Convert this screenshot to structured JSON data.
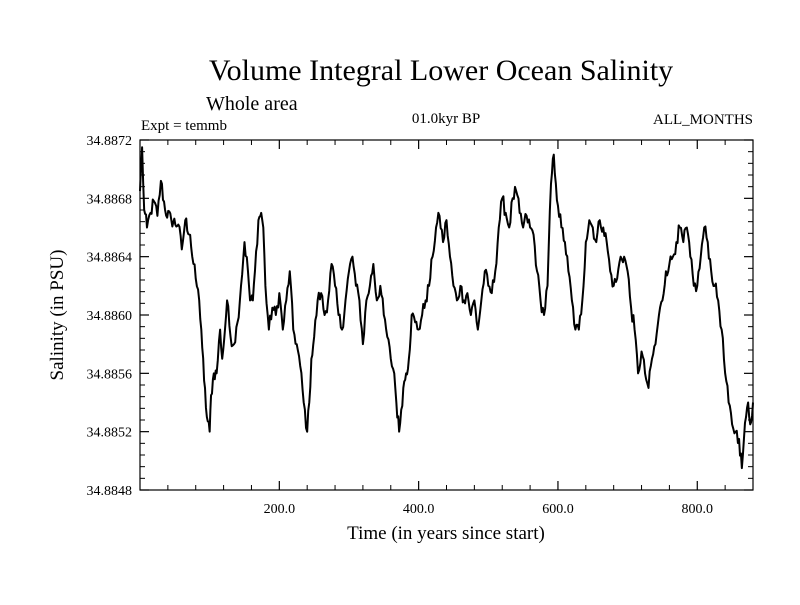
{
  "chart_data": {
    "type": "line",
    "title": "Volume Integral Lower Ocean Salinity",
    "subtitle": "Whole area",
    "left_string": "Expt = temmb",
    "center_string": "01.0kyr BP",
    "right_string": "ALL_MONTHS",
    "xlabel": "Time (in years since start)",
    "ylabel": "Salinity (in PSU)",
    "xlim": [
      0,
      880
    ],
    "ylim": [
      34.8848,
      34.8872
    ],
    "xticks": [
      200,
      400,
      600,
      800
    ],
    "xtick_labels": [
      "200.0",
      "400.0",
      "600.0",
      "800.0"
    ],
    "yticks": [
      34.8848,
      34.8852,
      34.8856,
      34.886,
      34.8864,
      34.8868,
      34.8872
    ],
    "ytick_labels": [
      "34.8848",
      "34.8852",
      "34.8856",
      "34.8860",
      "34.8864",
      "34.8868",
      "34.8872"
    ],
    "series": [
      {
        "name": "salinity",
        "color": "#000000",
        "keypoints": [
          [
            0,
            34.88685
          ],
          [
            3,
            34.88715
          ],
          [
            6,
            34.88672
          ],
          [
            10,
            34.8866
          ],
          [
            15,
            34.8867
          ],
          [
            20,
            34.88678
          ],
          [
            25,
            34.88668
          ],
          [
            30,
            34.88692
          ],
          [
            36,
            34.88672
          ],
          [
            45,
            34.88665
          ],
          [
            55,
            34.88662
          ],
          [
            60,
            34.88645
          ],
          [
            65,
            34.88665
          ],
          [
            72,
            34.88655
          ],
          [
            75,
            34.8864
          ],
          [
            80,
            34.88625
          ],
          [
            85,
            34.8861
          ],
          [
            88,
            34.8859
          ],
          [
            92,
            34.88555
          ],
          [
            96,
            34.8853
          ],
          [
            100,
            34.8852
          ],
          [
            102,
            34.88545
          ],
          [
            106,
            34.8856
          ],
          [
            110,
            34.8856
          ],
          [
            115,
            34.8859
          ],
          [
            118,
            34.8857
          ],
          [
            122,
            34.8859
          ],
          [
            125,
            34.8861
          ],
          [
            130,
            34.88585
          ],
          [
            135,
            34.8858
          ],
          [
            140,
            34.88595
          ],
          [
            145,
            34.8862
          ],
          [
            150,
            34.8865
          ],
          [
            155,
            34.8863
          ],
          [
            158,
            34.8861
          ],
          [
            162,
            34.8861
          ],
          [
            165,
            34.8863
          ],
          [
            170,
            34.88665
          ],
          [
            174,
            34.8867
          ],
          [
            177,
            34.8866
          ],
          [
            180,
            34.8862
          ],
          [
            185,
            34.8859
          ],
          [
            190,
            34.88605
          ],
          [
            195,
            34.886
          ],
          [
            200,
            34.88615
          ],
          [
            205,
            34.8859
          ],
          [
            210,
            34.8861
          ],
          [
            215,
            34.8863
          ],
          [
            220,
            34.8859
          ],
          [
            225,
            34.8858
          ],
          [
            230,
            34.88565
          ],
          [
            235,
            34.8854
          ],
          [
            240,
            34.8852
          ],
          [
            243,
            34.8854
          ],
          [
            246,
            34.8857
          ],
          [
            250,
            34.88585
          ],
          [
            255,
            34.8861
          ],
          [
            260,
            34.88615
          ],
          [
            265,
            34.886
          ],
          [
            270,
            34.8861
          ],
          [
            275,
            34.88635
          ],
          [
            280,
            34.8862
          ],
          [
            285,
            34.886
          ],
          [
            290,
            34.8859
          ],
          [
            295,
            34.8861
          ],
          [
            300,
            34.8863
          ],
          [
            305,
            34.8864
          ],
          [
            310,
            34.8862
          ],
          [
            315,
            34.8861
          ],
          [
            320,
            34.8858
          ],
          [
            325,
            34.8861
          ],
          [
            330,
            34.8862
          ],
          [
            335,
            34.88635
          ],
          [
            340,
            34.8861
          ],
          [
            345,
            34.8862
          ],
          [
            350,
            34.886
          ],
          [
            355,
            34.88585
          ],
          [
            360,
            34.8857
          ],
          [
            365,
            34.8856
          ],
          [
            368,
            34.8854
          ],
          [
            372,
            34.8852
          ],
          [
            375,
            34.88535
          ],
          [
            378,
            34.8855
          ],
          [
            382,
            34.8856
          ],
          [
            386,
            34.8857
          ],
          [
            390,
            34.886
          ],
          [
            395,
            34.88595
          ],
          [
            400,
            34.8859
          ],
          [
            405,
            34.886
          ],
          [
            410,
            34.8861
          ],
          [
            415,
            34.8862
          ],
          [
            420,
            34.8864
          ],
          [
            425,
            34.8866
          ],
          [
            430,
            34.88668
          ],
          [
            435,
            34.8865
          ],
          [
            440,
            34.88665
          ],
          [
            445,
            34.8864
          ],
          [
            450,
            34.8862
          ],
          [
            455,
            34.8861
          ],
          [
            460,
            34.8862
          ],
          [
            465,
            34.8861
          ],
          [
            470,
            34.88615
          ],
          [
            475,
            34.886
          ],
          [
            480,
            34.8861
          ],
          [
            485,
            34.8859
          ],
          [
            490,
            34.8861
          ],
          [
            495,
            34.8863
          ],
          [
            500,
            34.8862
          ],
          [
            505,
            34.88615
          ],
          [
            510,
            34.8863
          ],
          [
            515,
            34.8866
          ],
          [
            520,
            34.8868
          ],
          [
            525,
            34.8867
          ],
          [
            530,
            34.8866
          ],
          [
            535,
            34.8868
          ],
          [
            540,
            34.88685
          ],
          [
            545,
            34.8867
          ],
          [
            550,
            34.8866
          ],
          [
            555,
            34.88668
          ],
          [
            560,
            34.8866
          ],
          [
            565,
            34.88655
          ],
          [
            570,
            34.8863
          ],
          [
            575,
            34.8861
          ],
          [
            580,
            34.886
          ],
          [
            585,
            34.8862
          ],
          [
            590,
            34.8869
          ],
          [
            594,
            34.8871
          ],
          [
            597,
            34.8869
          ],
          [
            600,
            34.88675
          ],
          [
            605,
            34.8866
          ],
          [
            610,
            34.8865
          ],
          [
            615,
            34.8863
          ],
          [
            620,
            34.8861
          ],
          [
            625,
            34.8859
          ],
          [
            630,
            34.8859
          ],
          [
            635,
            34.8861
          ],
          [
            640,
            34.8865
          ],
          [
            645,
            34.88665
          ],
          [
            650,
            34.8866
          ],
          [
            655,
            34.8865
          ],
          [
            660,
            34.88665
          ],
          [
            665,
            34.8866
          ],
          [
            670,
            34.8865
          ],
          [
            675,
            34.8863
          ],
          [
            680,
            34.8862
          ],
          [
            685,
            34.88625
          ],
          [
            690,
            34.8864
          ],
          [
            695,
            34.8864
          ],
          [
            700,
            34.8863
          ],
          [
            705,
            34.88605
          ],
          [
            710,
            34.8859
          ],
          [
            715,
            34.8856
          ],
          [
            720,
            34.88575
          ],
          [
            725,
            34.8856
          ],
          [
            730,
            34.8855
          ],
          [
            735,
            34.8857
          ],
          [
            740,
            34.8858
          ],
          [
            745,
            34.886
          ],
          [
            750,
            34.8861
          ],
          [
            755,
            34.8863
          ],
          [
            760,
            34.88635
          ],
          [
            765,
            34.8864
          ],
          [
            770,
            34.8865
          ],
          [
            775,
            34.8866
          ],
          [
            780,
            34.8865
          ],
          [
            785,
            34.8866
          ],
          [
            790,
            34.8864
          ],
          [
            795,
            34.8862
          ],
          [
            800,
            34.8862
          ],
          [
            805,
            34.8864
          ],
          [
            810,
            34.8866
          ],
          [
            815,
            34.8865
          ],
          [
            820,
            34.8863
          ],
          [
            825,
            34.8862
          ],
          [
            830,
            34.8861
          ],
          [
            835,
            34.8859
          ],
          [
            840,
            34.8856
          ],
          [
            845,
            34.8854
          ],
          [
            850,
            34.88525
          ],
          [
            855,
            34.8852
          ],
          [
            860,
            34.88515
          ],
          [
            864,
            34.88495
          ],
          [
            867,
            34.88515
          ],
          [
            870,
            34.8853
          ],
          [
            873,
            34.8854
          ],
          [
            876,
            34.88525
          ],
          [
            880,
            34.8854
          ]
        ]
      }
    ]
  }
}
